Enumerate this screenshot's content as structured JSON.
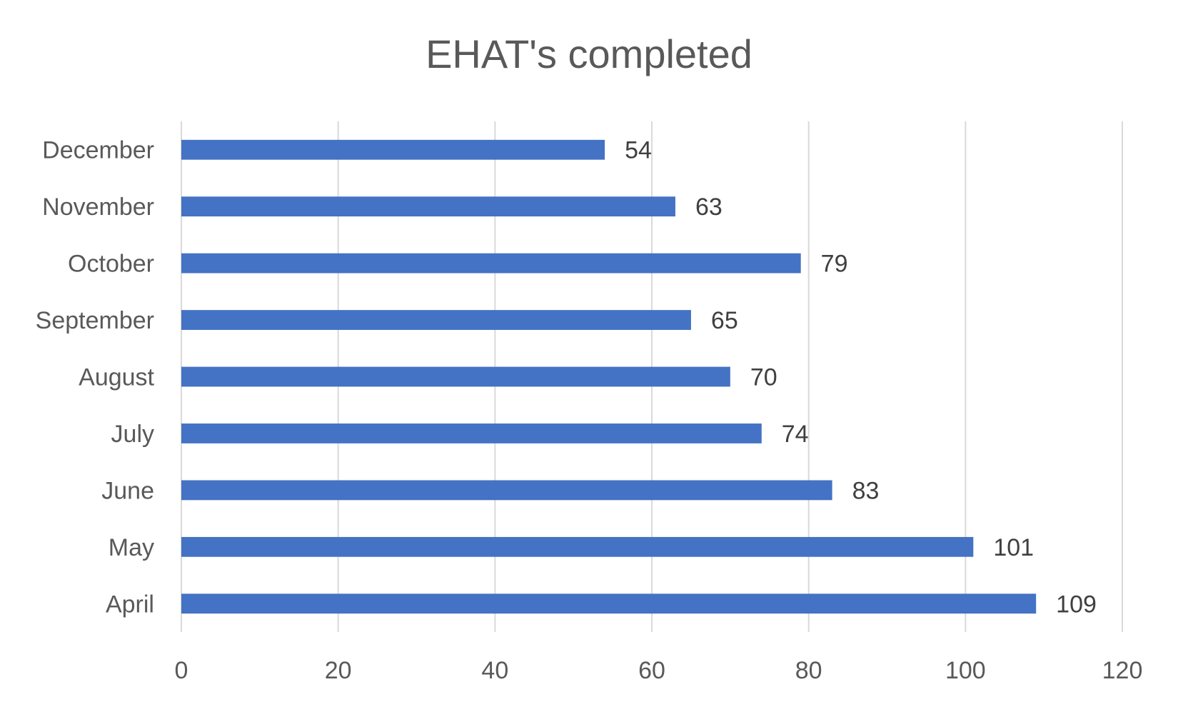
{
  "chart_data": {
    "type": "bar",
    "orientation": "horizontal",
    "title": "EHAT's completed",
    "categories": [
      "December",
      "November",
      "October",
      "September",
      "August",
      "July",
      "June",
      "May",
      "April"
    ],
    "values": [
      54,
      63,
      79,
      65,
      70,
      74,
      83,
      101,
      109
    ],
    "xlim": [
      0,
      120
    ],
    "xticks": [
      0,
      20,
      40,
      60,
      80,
      100,
      120
    ],
    "grid": true,
    "legend": "none",
    "data_labels": true,
    "bar_color": "#4472C4"
  }
}
